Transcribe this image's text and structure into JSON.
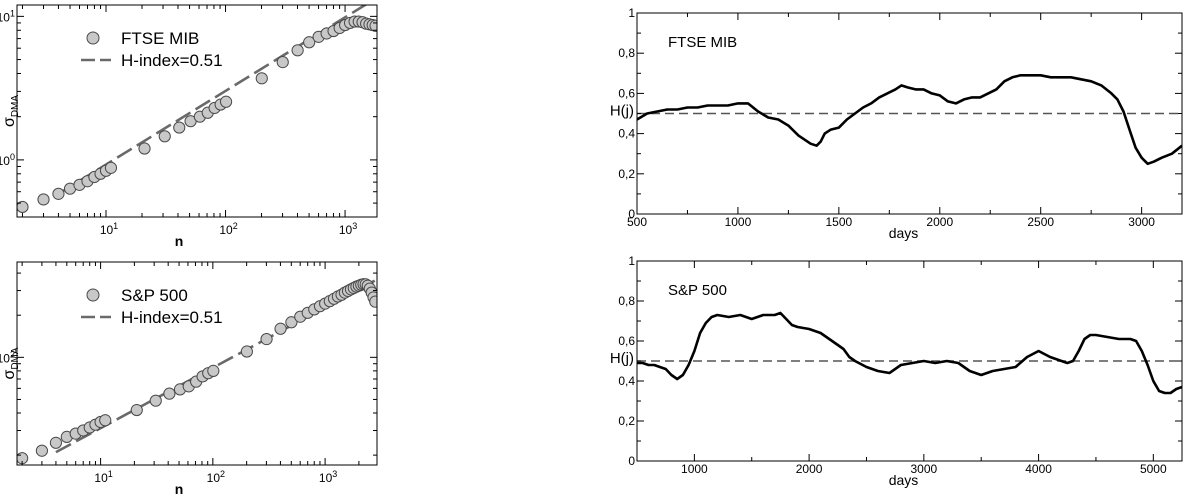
{
  "chart_data": [
    {
      "type": "scatter",
      "panel": "top-left",
      "xscale": "log",
      "yscale": "log",
      "xlabel": "n",
      "ylabel": "σ",
      "ylabel_sub": "DMA",
      "xlim": [
        1.8,
        1850
      ],
      "ylim": [
        0.4,
        12
      ],
      "xticks": [
        {
          "v": 10,
          "label": "10",
          "exp": "1"
        },
        {
          "v": 100,
          "label": "10",
          "exp": "2"
        },
        {
          "v": 1000,
          "label": "10",
          "exp": "3"
        }
      ],
      "yticks": [
        {
          "v": 1,
          "label": "10",
          "exp": "0"
        },
        {
          "v": 10,
          "label": "10",
          "exp": "1"
        }
      ],
      "legend": {
        "placement": "top-left",
        "markers": "FTSE MIB",
        "line": "H-index=0.51"
      },
      "series": [
        {
          "kind": "markers",
          "name": "FTSE MIB",
          "x": [
            2,
            3,
            4,
            5,
            6,
            7,
            8,
            9,
            10,
            11,
            21,
            31,
            41,
            51,
            61,
            71,
            81,
            91,
            101,
            201,
            301,
            401,
            501,
            601,
            701,
            801,
            901,
            1001,
            1101,
            1201,
            1301,
            1401,
            1501,
            1601,
            1701,
            1801
          ],
          "y": [
            0.47,
            0.53,
            0.58,
            0.63,
            0.67,
            0.71,
            0.76,
            0.8,
            0.84,
            0.88,
            1.2,
            1.46,
            1.68,
            1.86,
            2.0,
            2.13,
            2.3,
            2.43,
            2.54,
            3.7,
            4.8,
            5.8,
            6.6,
            7.2,
            7.6,
            7.9,
            8.3,
            8.7,
            9.0,
            9.2,
            9.2,
            9.1,
            8.9,
            8.8,
            8.7,
            8.6
          ]
        },
        {
          "kind": "line",
          "name": "H-index=0.51",
          "x": [
            4,
            1850
          ],
          "y": [
            0.58,
            13.5
          ]
        }
      ]
    },
    {
      "type": "line",
      "panel": "top-right",
      "xlabel": "days",
      "ylabel": "H(j)",
      "title": "FTSE MIB",
      "xlim": [
        500,
        3200
      ],
      "ylim": [
        0,
        1
      ],
      "xticks": [
        500,
        1000,
        1500,
        2000,
        2500,
        3000
      ],
      "yticks": [
        {
          "v": 0,
          "label": "0"
        },
        {
          "v": 0.2,
          "label": "0,2"
        },
        {
          "v": 0.4,
          "label": "0,4"
        },
        {
          "v": 0.6,
          "label": "0,6"
        },
        {
          "v": 0.8,
          "label": "0,8"
        },
        {
          "v": 1,
          "label": "1"
        }
      ],
      "reference_line": 0.5,
      "series": [
        {
          "name": "",
          "x": [
            500,
            550,
            600,
            650,
            700,
            750,
            800,
            850,
            900,
            950,
            1000,
            1050,
            1100,
            1150,
            1200,
            1250,
            1300,
            1330,
            1360,
            1390,
            1410,
            1430,
            1460,
            1500,
            1540,
            1580,
            1620,
            1660,
            1700,
            1740,
            1780,
            1810,
            1840,
            1880,
            1920,
            1960,
            2000,
            2040,
            2080,
            2120,
            2160,
            2200,
            2240,
            2280,
            2320,
            2360,
            2400,
            2450,
            2500,
            2550,
            2600,
            2650,
            2700,
            2750,
            2800,
            2850,
            2880,
            2910,
            2940,
            2970,
            3000,
            3030,
            3060,
            3100,
            3150,
            3200
          ],
          "y": [
            0.47,
            0.5,
            0.51,
            0.52,
            0.52,
            0.53,
            0.53,
            0.54,
            0.54,
            0.54,
            0.55,
            0.55,
            0.51,
            0.48,
            0.47,
            0.44,
            0.39,
            0.37,
            0.35,
            0.34,
            0.36,
            0.4,
            0.42,
            0.43,
            0.47,
            0.5,
            0.53,
            0.55,
            0.58,
            0.6,
            0.62,
            0.64,
            0.63,
            0.62,
            0.62,
            0.6,
            0.59,
            0.56,
            0.55,
            0.57,
            0.58,
            0.58,
            0.6,
            0.62,
            0.66,
            0.68,
            0.69,
            0.69,
            0.69,
            0.68,
            0.68,
            0.68,
            0.67,
            0.66,
            0.64,
            0.6,
            0.57,
            0.51,
            0.42,
            0.33,
            0.28,
            0.25,
            0.26,
            0.28,
            0.3,
            0.34
          ]
        }
      ]
    },
    {
      "type": "scatter",
      "panel": "bottom-left",
      "xscale": "log",
      "yscale": "log",
      "xlabel": "n",
      "ylabel": "σ",
      "ylabel_sub": "DMA",
      "xlim": [
        1.8,
        2900
      ],
      "ylim": [
        17,
        480
      ],
      "xticks": [
        {
          "v": 10,
          "label": "10",
          "exp": "1"
        },
        {
          "v": 100,
          "label": "10",
          "exp": "2"
        },
        {
          "v": 1000,
          "label": "10",
          "exp": "3"
        }
      ],
      "yticks": [
        {
          "v": 100,
          "label": "10",
          "exp": "2"
        }
      ],
      "legend": {
        "placement": "top-left",
        "markers": "S&P 500",
        "line": "H-index=0.51"
      },
      "series": [
        {
          "kind": "markers",
          "name": "S&P 500",
          "x": [
            2,
            3,
            4,
            5,
            6,
            7,
            8,
            9,
            10,
            11,
            21,
            31,
            41,
            51,
            61,
            71,
            81,
            91,
            101,
            201,
            301,
            401,
            501,
            601,
            701,
            801,
            901,
            1001,
            1101,
            1201,
            1301,
            1401,
            1501,
            1601,
            1701,
            1801,
            1901,
            2001,
            2101,
            2201,
            2301,
            2401,
            2501,
            2601,
            2701,
            2801
          ],
          "y": [
            19,
            21.5,
            24.5,
            27,
            28.5,
            30,
            31.5,
            33,
            34.5,
            35.5,
            42,
            49,
            55,
            59,
            62,
            67,
            73,
            77,
            80,
            110,
            135,
            160,
            178,
            195,
            208,
            220,
            232,
            242,
            252,
            262,
            272,
            280,
            290,
            298,
            306,
            313,
            320,
            325,
            330,
            333,
            332,
            325,
            310,
            290,
            268,
            250
          ]
        },
        {
          "kind": "line",
          "name": "H-index=0.51",
          "x": [
            4,
            2900
          ],
          "y": [
            21,
            360
          ]
        }
      ]
    },
    {
      "type": "line",
      "panel": "bottom-right",
      "xlabel": "days",
      "ylabel": "H(j)",
      "title": "S&P 500",
      "xlim": [
        500,
        5250
      ],
      "ylim": [
        0,
        1
      ],
      "xticks": [
        1000,
        2000,
        3000,
        4000,
        5000
      ],
      "yticks": [
        {
          "v": 0,
          "label": "0"
        },
        {
          "v": 0.2,
          "label": "0,2"
        },
        {
          "v": 0.4,
          "label": "0,4"
        },
        {
          "v": 0.6,
          "label": "0,6"
        },
        {
          "v": 0.8,
          "label": "0,8"
        },
        {
          "v": 1,
          "label": "1"
        }
      ],
      "reference_line": 0.5,
      "series": [
        {
          "name": "",
          "x": [
            500,
            550,
            600,
            650,
            700,
            750,
            800,
            850,
            900,
            950,
            1000,
            1050,
            1100,
            1150,
            1200,
            1300,
            1400,
            1500,
            1600,
            1700,
            1750,
            1800,
            1850,
            1900,
            2000,
            2100,
            2200,
            2300,
            2350,
            2400,
            2500,
            2600,
            2700,
            2800,
            2900,
            3000,
            3100,
            3200,
            3300,
            3400,
            3500,
            3600,
            3700,
            3800,
            3900,
            4000,
            4100,
            4200,
            4250,
            4300,
            4350,
            4400,
            4450,
            4500,
            4600,
            4700,
            4800,
            4850,
            4900,
            4950,
            5000,
            5050,
            5100,
            5150,
            5200,
            5250
          ],
          "y": [
            0.49,
            0.49,
            0.48,
            0.48,
            0.47,
            0.46,
            0.43,
            0.41,
            0.43,
            0.48,
            0.55,
            0.64,
            0.69,
            0.72,
            0.73,
            0.72,
            0.73,
            0.71,
            0.73,
            0.73,
            0.74,
            0.71,
            0.68,
            0.67,
            0.66,
            0.64,
            0.6,
            0.56,
            0.52,
            0.5,
            0.47,
            0.45,
            0.44,
            0.48,
            0.49,
            0.5,
            0.49,
            0.5,
            0.49,
            0.45,
            0.43,
            0.45,
            0.46,
            0.47,
            0.52,
            0.55,
            0.52,
            0.5,
            0.49,
            0.5,
            0.55,
            0.61,
            0.63,
            0.63,
            0.62,
            0.61,
            0.61,
            0.6,
            0.55,
            0.48,
            0.4,
            0.35,
            0.34,
            0.34,
            0.36,
            0.37
          ]
        }
      ]
    }
  ],
  "colors": {
    "marker_fill": "#c8c8c8",
    "marker_stroke": "#4a4a4a",
    "fit_line": "#6a6a6a",
    "series_line": "#000000",
    "reference_line": "#555555"
  }
}
